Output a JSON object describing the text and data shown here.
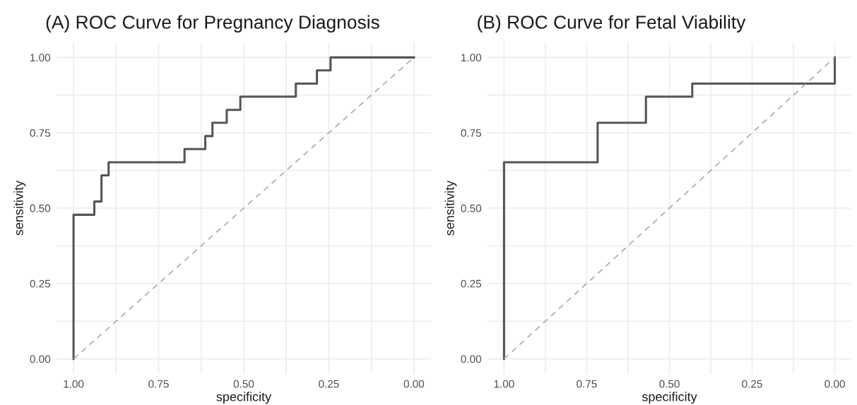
{
  "chart_data": [
    {
      "type": "line",
      "title": "(A) ROC Curve for Pregnancy Diagnosis",
      "xlabel": "specificity",
      "ylabel": "sensitivity",
      "xlim": [
        1.05,
        -0.05
      ],
      "ylim": [
        -0.05,
        1.05
      ],
      "xticks": [
        {
          "value": 1.0,
          "label": "1.00"
        },
        {
          "value": 0.875,
          "label": null
        },
        {
          "value": 0.75,
          "label": "0.75"
        },
        {
          "value": 0.625,
          "label": null
        },
        {
          "value": 0.5,
          "label": "0.50"
        },
        {
          "value": 0.375,
          "label": null
        },
        {
          "value": 0.25,
          "label": "0.25"
        },
        {
          "value": 0.125,
          "label": null
        },
        {
          "value": 0.0,
          "label": "0.00"
        }
      ],
      "yticks": [
        {
          "value": 0.0,
          "label": "0.00"
        },
        {
          "value": 0.125,
          "label": null
        },
        {
          "value": 0.25,
          "label": "0.25"
        },
        {
          "value": 0.375,
          "label": null
        },
        {
          "value": 0.5,
          "label": "0.50"
        },
        {
          "value": 0.625,
          "label": null
        },
        {
          "value": 0.75,
          "label": "0.75"
        },
        {
          "value": 0.875,
          "label": null
        },
        {
          "value": 1.0,
          "label": "1.00"
        }
      ],
      "grid": true,
      "series": [
        {
          "color": "#555555",
          "line_style": "solid",
          "x": [
            1.0,
            1.0,
            0.939,
            0.939,
            0.918,
            0.918,
            0.897,
            0.897,
            0.674,
            0.674,
            0.613,
            0.613,
            0.592,
            0.592,
            0.55,
            0.55,
            0.51,
            0.51,
            0.347,
            0.347,
            0.285,
            0.285,
            0.245,
            0.245,
            0.0
          ],
          "values": [
            0.0,
            0.478,
            0.478,
            0.522,
            0.522,
            0.609,
            0.609,
            0.652,
            0.652,
            0.696,
            0.696,
            0.739,
            0.739,
            0.783,
            0.783,
            0.826,
            0.826,
            0.87,
            0.87,
            0.913,
            0.913,
            0.957,
            0.957,
            1.0,
            1.0
          ]
        },
        {
          "color": "#aaaaaa",
          "line_style": "dashed",
          "x": [
            1.0,
            0.0
          ],
          "values": [
            0.0,
            1.0
          ]
        }
      ]
    },
    {
      "type": "line",
      "title": "(B) ROC Curve for Fetal Viability",
      "xlabel": "specificity",
      "ylabel": "sensitivity",
      "xlim": [
        1.05,
        -0.05
      ],
      "ylim": [
        -0.05,
        1.05
      ],
      "xticks": [
        {
          "value": 1.0,
          "label": "1.00"
        },
        {
          "value": 0.875,
          "label": null
        },
        {
          "value": 0.75,
          "label": "0.75"
        },
        {
          "value": 0.625,
          "label": null
        },
        {
          "value": 0.5,
          "label": "0.50"
        },
        {
          "value": 0.375,
          "label": null
        },
        {
          "value": 0.25,
          "label": "0.25"
        },
        {
          "value": 0.125,
          "label": null
        },
        {
          "value": 0.0,
          "label": "0.00"
        }
      ],
      "yticks": [
        {
          "value": 0.0,
          "label": "0.00"
        },
        {
          "value": 0.125,
          "label": null
        },
        {
          "value": 0.25,
          "label": "0.25"
        },
        {
          "value": 0.375,
          "label": null
        },
        {
          "value": 0.5,
          "label": "0.50"
        },
        {
          "value": 0.625,
          "label": null
        },
        {
          "value": 0.75,
          "label": "0.75"
        },
        {
          "value": 0.875,
          "label": null
        },
        {
          "value": 1.0,
          "label": "1.00"
        }
      ],
      "grid": true,
      "series": [
        {
          "color": "#555555",
          "line_style": "solid",
          "x": [
            1.0,
            1.0,
            0.717,
            0.717,
            0.571,
            0.571,
            0.431,
            0.431,
            0.0,
            0.0
          ],
          "values": [
            0.0,
            0.652,
            0.652,
            0.783,
            0.783,
            0.87,
            0.87,
            0.913,
            0.913,
            1.0
          ]
        },
        {
          "color": "#aaaaaa",
          "line_style": "dashed",
          "x": [
            1.0,
            0.0
          ],
          "values": [
            0.0,
            1.0
          ]
        }
      ]
    }
  ]
}
